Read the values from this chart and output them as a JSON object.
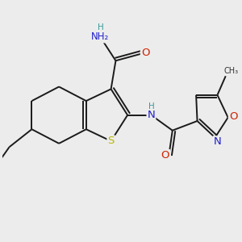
{
  "bg_color": "#ececec",
  "bond_color": "#1a1a1a",
  "bond_width": 1.4,
  "atom_colors": {
    "S": "#b8b800",
    "N": "#2020cc",
    "O": "#cc2200",
    "H": "#3a9a9a",
    "C": "#1a1a1a"
  },
  "fs": 8.5,
  "figsize": [
    3.0,
    3.0
  ],
  "dpi": 100
}
